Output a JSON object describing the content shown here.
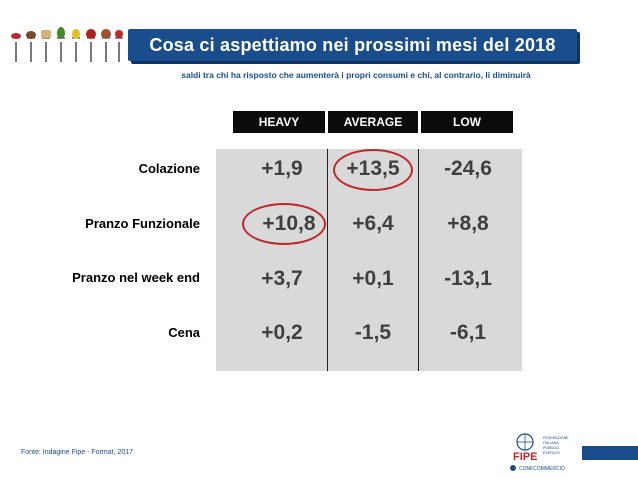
{
  "title": "Cosa ci aspettiamo nei prossimi mesi del 2018",
  "subtitle": "saldi tra chi ha risposto che aumenterà i propri consumi e chi, al contrario, li diminuirà",
  "columns": [
    "HEAVY",
    "AVERAGE",
    "LOW"
  ],
  "rows": [
    {
      "label": "Colazione",
      "values": [
        "+1,9",
        "+13,5",
        "-24,6"
      ]
    },
    {
      "label": "Pranzo Funzionale",
      "values": [
        "+10,8",
        "+6,4",
        "+8,8"
      ]
    },
    {
      "label": "Pranzo nel week end",
      "values": [
        "+3,7",
        "+0,1",
        "-13,1"
      ]
    },
    {
      "label": "Cena",
      "values": [
        "+0,2",
        "-1,5",
        "-6,1"
      ]
    }
  ],
  "highlighted_cells": [
    "Colazione / AVERAGE",
    "Pranzo Funzionale / HEAVY"
  ],
  "source": "Fonte: Indagine Fipe - Format, 2017",
  "logo": {
    "name": "FIPE",
    "lines": [
      "FEDERAZIONE",
      "ITALIANA",
      "PUBBLICI",
      "ESERCIZI"
    ],
    "affiliation": "CONFCOMMERCIO"
  },
  "colors": {
    "brand_blue": "#1a4d8c",
    "header_black": "#0b0b0b",
    "table_gray": "#d9d9d9",
    "highlight_red": "#c0282e"
  }
}
